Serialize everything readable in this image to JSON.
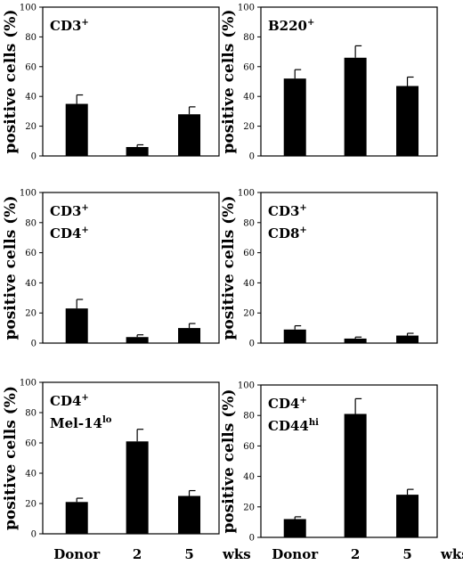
{
  "y_axis_label": "positive cells (%)",
  "x_categories": [
    "Donor",
    "2",
    "5"
  ],
  "x_unit": "wks",
  "chart_data": [
    {
      "type": "bar",
      "label": [
        {
          "text": "CD3",
          "sup": "+"
        }
      ],
      "categories": [
        "Donor",
        "2",
        "5"
      ],
      "values": [
        35,
        6,
        28
      ],
      "errors": [
        6,
        1.5,
        5
      ],
      "ylim": [
        0,
        100
      ],
      "yticks": [
        0,
        20,
        40,
        60,
        80,
        100
      ]
    },
    {
      "type": "bar",
      "label": [
        {
          "text": "B220",
          "sup": "+"
        }
      ],
      "categories": [
        "Donor",
        "2",
        "5"
      ],
      "values": [
        52,
        66,
        47
      ],
      "errors": [
        6,
        8,
        6
      ],
      "ylim": [
        0,
        100
      ],
      "yticks": [
        0,
        20,
        40,
        60,
        80,
        100
      ]
    },
    {
      "type": "bar",
      "label": [
        {
          "text": "CD3",
          "sup": "+"
        },
        {
          "text": "CD4",
          "sup": "+"
        }
      ],
      "categories": [
        "Donor",
        "2",
        "5"
      ],
      "values": [
        23,
        4,
        10
      ],
      "errors": [
        6,
        1.5,
        3
      ],
      "ylim": [
        0,
        100
      ],
      "yticks": [
        0,
        20,
        40,
        60,
        80,
        100
      ]
    },
    {
      "type": "bar",
      "label": [
        {
          "text": "CD3",
          "sup": "+"
        },
        {
          "text": "CD8",
          "sup": "+"
        }
      ],
      "categories": [
        "Donor",
        "2",
        "5"
      ],
      "values": [
        9,
        3,
        5
      ],
      "errors": [
        2.5,
        1,
        1.5
      ],
      "ylim": [
        0,
        100
      ],
      "yticks": [
        0,
        20,
        40,
        60,
        80,
        100
      ]
    },
    {
      "type": "bar",
      "label": [
        {
          "text": "CD4",
          "sup": "+"
        },
        {
          "text": "Mel-14",
          "sup": "lo"
        }
      ],
      "categories": [
        "Donor",
        "2",
        "5"
      ],
      "values": [
        21,
        61,
        25
      ],
      "errors": [
        2.5,
        8,
        3.5
      ],
      "ylim": [
        0,
        100
      ],
      "yticks": [
        0,
        20,
        40,
        60,
        80,
        100
      ]
    },
    {
      "type": "bar",
      "label": [
        {
          "text": "CD4",
          "sup": "+"
        },
        {
          "text": "CD44",
          "sup": "hi"
        }
      ],
      "categories": [
        "Donor",
        "2",
        "5"
      ],
      "values": [
        12,
        81,
        28
      ],
      "errors": [
        1.5,
        10,
        3.5
      ],
      "ylim": [
        0,
        100
      ],
      "yticks": [
        0,
        20,
        40,
        60,
        80,
        100
      ]
    }
  ]
}
